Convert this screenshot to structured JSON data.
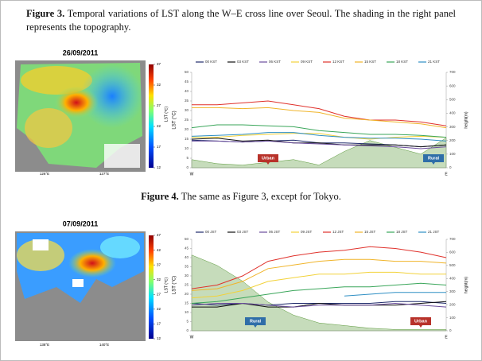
{
  "figures": [
    {
      "label": "Figure 3.",
      "caption": "Temporal variations of LST along the W–E cross line over Seoul. The shading in the right panel represents the topography.",
      "map": {
        "date": "26/09/2011",
        "colorbar_label": "LST (℃)",
        "colorbar_ticks": [
          12,
          17,
          22,
          27,
          32,
          37
        ],
        "lon_labels": [
          "126°E",
          "127°E"
        ]
      }
    },
    {
      "label": "Figure 4.",
      "caption": "The same as Figure 3, except for Tokyo.",
      "map": {
        "date": "07/09/2011",
        "colorbar_label": "LST (℃)",
        "colorbar_ticks": [
          12,
          17,
          22,
          27,
          32,
          37,
          42,
          47
        ],
        "lon_labels": [
          "138°E",
          "140°E"
        ]
      }
    }
  ],
  "chart_data": [
    {
      "type": "line",
      "y_label": "LST (°C)",
      "y2_label": "height(m)",
      "categories": [
        "W",
        null,
        null,
        null,
        null,
        null,
        null,
        null,
        null,
        null,
        "E"
      ],
      "ylim": [
        0,
        50
      ],
      "yticks": [
        0,
        5,
        10,
        15,
        20,
        25,
        30,
        35,
        40,
        45,
        50
      ],
      "y2lim": [
        0,
        700
      ],
      "y2ticks": [
        0,
        100,
        200,
        300,
        400,
        500,
        600,
        700
      ],
      "series": [
        {
          "name": "00 KST",
          "color": "#1f2a6b",
          "values": [
            14.5,
            14,
            13.5,
            14,
            14.5,
            13,
            13,
            12.5,
            12,
            11,
            12
          ]
        },
        {
          "name": "03 KST",
          "color": "#111111",
          "values": [
            15,
            15.5,
            14,
            14.5,
            13,
            13,
            12,
            12,
            12,
            11,
            12
          ]
        },
        {
          "name": "06 KST",
          "color": "#6a4c9c",
          "values": [
            14,
            14,
            13.5,
            14,
            13,
            12.5,
            12,
            11.5,
            11,
            10,
            11
          ]
        },
        {
          "name": "09 KST",
          "color": "#f2d23a",
          "values": [
            16,
            16,
            17,
            17.5,
            18,
            18,
            16,
            15,
            16,
            16.5,
            16
          ]
        },
        {
          "name": "12 KST",
          "color": "#e0312b",
          "values": [
            33,
            33,
            34,
            35,
            33,
            31,
            27,
            25,
            25,
            24,
            22
          ]
        },
        {
          "name": "15 KST",
          "color": "#f0b429",
          "values": [
            31.5,
            31.5,
            31,
            31.5,
            30,
            29,
            26,
            25,
            24,
            23,
            21
          ]
        },
        {
          "name": "18 KST",
          "color": "#3aa65a",
          "values": [
            21,
            22.5,
            22.5,
            22,
            21.5,
            19.5,
            18.5,
            17.5,
            17.5,
            17,
            16
          ]
        },
        {
          "name": "21 KST",
          "color": "#2f8fc4",
          "values": [
            16.5,
            17,
            17.5,
            18.5,
            18.5,
            17,
            16,
            15.5,
            15.5,
            15,
            14
          ]
        }
      ],
      "topography": {
        "axis": "y2",
        "color": "#5c9a3c",
        "values": [
          60,
          30,
          20,
          40,
          60,
          20,
          120,
          200,
          150,
          100,
          220
        ]
      },
      "annotations": [
        {
          "text": "Urban",
          "x": 3,
          "color": "#b8322a"
        },
        {
          "text": "Rural",
          "x": 9.5,
          "color": "#2f6ea8"
        }
      ]
    },
    {
      "type": "line",
      "y_label": "LST (°C)",
      "y2_label": "height(m)",
      "categories": [
        "W",
        null,
        null,
        null,
        null,
        null,
        null,
        null,
        null,
        null,
        "E"
      ],
      "ylim": [
        0,
        50
      ],
      "yticks": [
        0,
        5,
        10,
        15,
        20,
        25,
        30,
        35,
        40,
        45,
        50
      ],
      "y2lim": [
        0,
        700
      ],
      "y2ticks": [
        0,
        100,
        200,
        300,
        400,
        500,
        600,
        700
      ],
      "series": [
        {
          "name": "00 JST",
          "color": "#1f2a6b",
          "values": [
            15,
            14,
            15,
            14,
            15,
            15,
            15,
            15,
            16,
            16,
            15
          ]
        },
        {
          "name": "03 JST",
          "color": "#111111",
          "values": [
            13,
            13,
            15,
            13,
            13,
            15,
            14,
            14,
            14,
            15,
            16
          ]
        },
        {
          "name": "06 JST",
          "color": "#6a4c9c",
          "values": [
            14,
            15,
            15,
            14,
            13,
            14,
            14,
            14,
            15,
            14,
            13
          ]
        },
        {
          "name": "09 JST",
          "color": "#f2d23a",
          "values": [
            18,
            19,
            22,
            27,
            29,
            31,
            31,
            32,
            32,
            31,
            31
          ]
        },
        {
          "name": "12 JST",
          "color": "#e0312b",
          "values": [
            23,
            25,
            30,
            38,
            41,
            43,
            44,
            46,
            45,
            43,
            40
          ]
        },
        {
          "name": "15 JST",
          "color": "#f0b429",
          "values": [
            22,
            23,
            27,
            34,
            36,
            38,
            39,
            39,
            38,
            38,
            37
          ]
        },
        {
          "name": "18 JST",
          "color": "#3aa65a",
          "values": [
            15,
            16,
            18,
            20,
            22,
            23,
            24,
            24,
            25,
            26,
            25
          ]
        },
        {
          "name": "21 JST",
          "color": "#2f8fc4",
          "values": [
            null,
            null,
            null,
            null,
            null,
            null,
            19,
            20,
            21,
            21,
            21
          ]
        }
      ],
      "topography": {
        "axis": "y2",
        "color": "#5c9a3c",
        "values": [
          580,
          500,
          380,
          220,
          120,
          60,
          40,
          20,
          10,
          10,
          10
        ]
      },
      "annotations": [
        {
          "text": "Rural",
          "x": 2.5,
          "color": "#2f6ea8"
        },
        {
          "text": "Urban",
          "x": 9,
          "color": "#b8322a"
        }
      ]
    }
  ]
}
